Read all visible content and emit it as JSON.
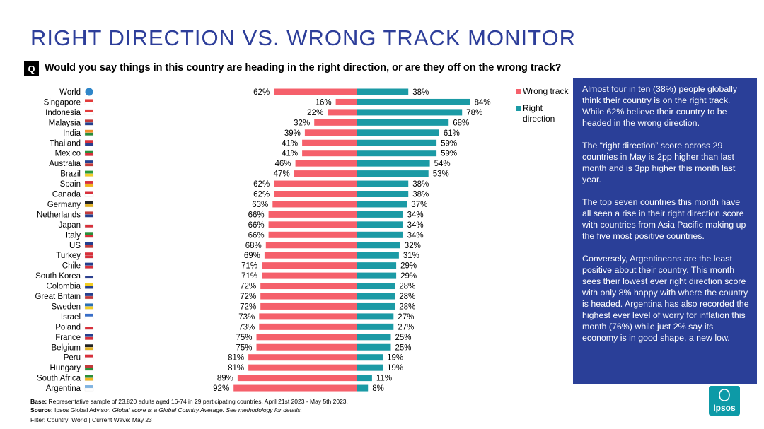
{
  "page": {
    "title": "RIGHT DIRECTION VS. WRONG TRACK MONITOR",
    "question_badge": "Q",
    "question": "Would you say things in this country are heading in the right direction, or are they off on the wrong track?"
  },
  "legend": {
    "wrong_label": "Wrong track",
    "right_label": "Right direction"
  },
  "colors": {
    "wrong": "#f5606b",
    "right": "#1b9aa5",
    "panel": "#2a3f98",
    "title": "#2d3e9a"
  },
  "chart_data": {
    "type": "bar",
    "orientation": "horizontal-diverging",
    "categories": [
      "World",
      "Singapore",
      "Indonesia",
      "Malaysia",
      "India",
      "Thailand",
      "Mexico",
      "Australia",
      "Brazil",
      "Spain",
      "Canada",
      "Germany",
      "Netherlands",
      "Japan",
      "Italy",
      "US",
      "Turkey",
      "Chile",
      "South Korea",
      "Colombia",
      "Great Britain",
      "Sweden",
      "Israel",
      "Poland",
      "France",
      "Belgium",
      "Peru",
      "Hungary",
      "South Africa",
      "Argentina"
    ],
    "series": [
      {
        "name": "Wrong track",
        "values": [
          62,
          16,
          22,
          32,
          39,
          41,
          41,
          46,
          47,
          62,
          62,
          63,
          66,
          66,
          66,
          68,
          69,
          71,
          71,
          72,
          72,
          72,
          73,
          73,
          75,
          75,
          81,
          81,
          89,
          92
        ]
      },
      {
        "name": "Right direction",
        "values": [
          38,
          84,
          78,
          68,
          61,
          59,
          59,
          54,
          53,
          38,
          38,
          37,
          34,
          34,
          34,
          32,
          31,
          29,
          29,
          28,
          28,
          28,
          27,
          27,
          25,
          25,
          19,
          19,
          11,
          8
        ]
      }
    ],
    "unit": "%",
    "xlim": [
      0,
      100
    ],
    "legend_position": "right"
  },
  "panel": {
    "paragraphs": [
      "Almost four in ten (38%) people globally think their country is on the right track. While 62% believe their country to be headed in the wrong direction.",
      "The “right direction” score across 29 countries in May is 2pp higher than last month and is 3pp higher this month last year.",
      "The top seven countries this month have all seen a rise in their right direction score with countries from Asia Pacific making up the five most positive countries.",
      "Conversely, Argentineans are the least positive about their country. This month sees their lowest ever right direction score with only 8% happy with where the country is headed. Argentina has also recorded the highest ever level of worry for inflation this month (76%) while just 2% say its economy is in good shape, a new low."
    ]
  },
  "footer": {
    "base_label": "Base:",
    "base_text": " Representative sample of 23,820 adults aged 16-74 in 29 participating countries, April 21st 2023 - May 5th 2023.",
    "source_label": "Source:",
    "source_text": " Ipsos Global Advisor. ",
    "source_note": "Global score is a Global Country Average. See methodology for details.",
    "filter_text": "Filter: Country: World | Current Wave: May 23"
  },
  "logo": {
    "text": "Ipsos"
  }
}
